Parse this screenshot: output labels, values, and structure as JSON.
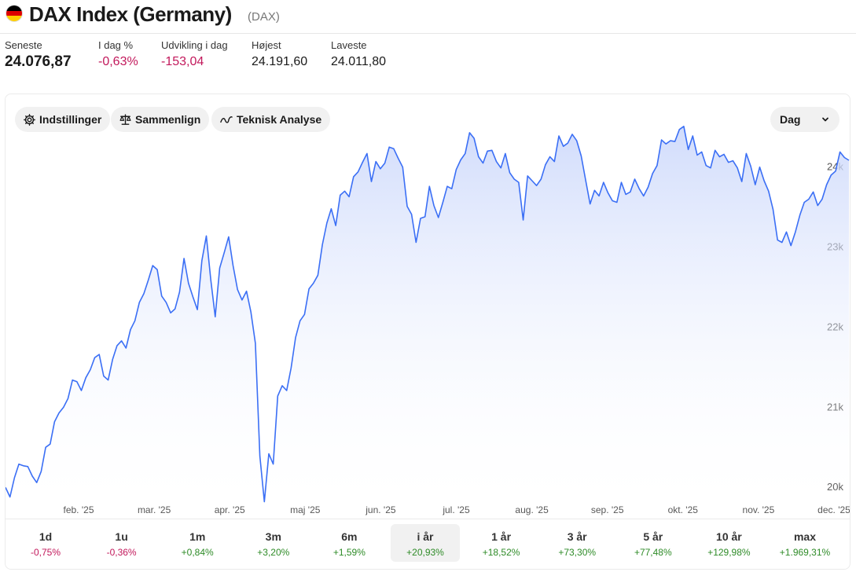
{
  "header": {
    "title": "DAX Index (Germany)",
    "ticker": "(DAX)",
    "flag_colors": [
      "#000000",
      "#dd0000",
      "#ffce00"
    ]
  },
  "stats": [
    {
      "label": "Seneste",
      "value": "24.076,87"
    },
    {
      "label": "I dag %",
      "value": "-0,63%"
    },
    {
      "label": "Udvikling i dag",
      "value": "-153,04"
    },
    {
      "label": "Højest",
      "value": "24.191,60"
    },
    {
      "label": "Laveste",
      "value": "24.011,80"
    }
  ],
  "toolbar": {
    "settings_label": "Indstillinger",
    "settings_icon": "gear-icon",
    "compare_label": "Sammenlign",
    "compare_icon": "scale-icon",
    "ta_label": "Teknisk Analyse",
    "ta_icon": "trend-line-icon",
    "interval_label": "Dag"
  },
  "colors": {
    "line": "#3b6ff5",
    "negative": "#c2185b",
    "positive": "#2e8b27"
  },
  "chart_data": {
    "type": "area",
    "x_ticks": [
      "feb. '25",
      "mar. '25",
      "apr. '25",
      "maj '25",
      "jun. '25",
      "jul. '25",
      "aug. '25",
      "sep. '25",
      "okt. '25",
      "nov. '25",
      "dec. '25"
    ],
    "y_ticks": [
      "20k",
      "21k",
      "22k",
      "23k",
      "24k"
    ],
    "ylim": [
      19600,
      24900
    ],
    "grid": false,
    "y_axis_side": "right",
    "values": [
      19990,
      19870,
      20110,
      20280,
      20260,
      20250,
      20130,
      20050,
      20190,
      20490,
      20530,
      20810,
      20920,
      20990,
      21100,
      21330,
      21310,
      21200,
      21360,
      21460,
      21610,
      21650,
      21380,
      21330,
      21590,
      21760,
      21820,
      21730,
      21960,
      22070,
      22300,
      22410,
      22580,
      22760,
      22710,
      22380,
      22300,
      22170,
      22220,
      22430,
      22850,
      22540,
      22370,
      22210,
      22820,
      23130,
      22580,
      22120,
      22730,
      22920,
      23120,
      22760,
      22460,
      22330,
      22440,
      22180,
      21790,
      20380,
      19810,
      20410,
      20280,
      21130,
      21260,
      21200,
      21480,
      21860,
      22070,
      22150,
      22470,
      22540,
      22640,
      23020,
      23290,
      23470,
      23260,
      23640,
      23690,
      23620,
      23870,
      23930,
      24050,
      24160,
      23810,
      24060,
      23970,
      24040,
      24240,
      24220,
      24100,
      23990,
      23500,
      23400,
      23050,
      23350,
      23370,
      23750,
      23510,
      23360,
      23550,
      23750,
      23720,
      23960,
      24080,
      24160,
      24420,
      24350,
      24120,
      24040,
      24190,
      24200,
      24060,
      23980,
      24160,
      23920,
      23840,
      23800,
      23330,
      23880,
      23820,
      23760,
      23840,
      24020,
      24120,
      24060,
      24380,
      24250,
      24290,
      24400,
      24320,
      24130,
      23830,
      23530,
      23700,
      23630,
      23800,
      23670,
      23570,
      23550,
      23800,
      23650,
      23680,
      23840,
      23720,
      23630,
      23740,
      23910,
      24010,
      24330,
      24280,
      24320,
      24310,
      24460,
      24500,
      24210,
      24380,
      24140,
      24180,
      24010,
      23980,
      24200,
      24120,
      24150,
      24050,
      24070,
      23980,
      23810,
      24160,
      24000,
      23770,
      23990,
      23820,
      23690,
      23460,
      23080,
      23050,
      23180,
      23010,
      23180,
      23390,
      23550,
      23590,
      23680,
      23510,
      23590,
      23770,
      23890,
      23940,
      24180,
      24110,
      24076
    ]
  },
  "ranges": [
    {
      "label": "1d",
      "change": "-0,75%",
      "dir": "neg"
    },
    {
      "label": "1u",
      "change": "-0,36%",
      "dir": "neg"
    },
    {
      "label": "1m",
      "change": "+0,84%",
      "dir": "pos"
    },
    {
      "label": "3m",
      "change": "+3,20%",
      "dir": "pos"
    },
    {
      "label": "6m",
      "change": "+1,59%",
      "dir": "pos"
    },
    {
      "label": "i år",
      "change": "+20,93%",
      "dir": "pos",
      "active": true
    },
    {
      "label": "1 år",
      "change": "+18,52%",
      "dir": "pos"
    },
    {
      "label": "3 år",
      "change": "+73,30%",
      "dir": "pos"
    },
    {
      "label": "5 år",
      "change": "+77,48%",
      "dir": "pos"
    },
    {
      "label": "10 år",
      "change": "+129,98%",
      "dir": "pos"
    },
    {
      "label": "max",
      "change": "+1.969,31%",
      "dir": "pos"
    }
  ]
}
